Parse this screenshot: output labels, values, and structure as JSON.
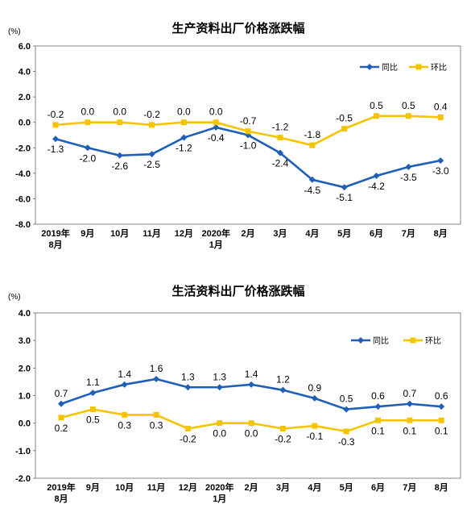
{
  "chart_data": [
    {
      "type": "line",
      "title": "生产资料出厂价格涨跌幅",
      "unit": "(%)",
      "categories": [
        "2019年\n8月",
        "9月",
        "10月",
        "11月",
        "12月",
        "2020年\n1月",
        "2月",
        "3月",
        "4月",
        "5月",
        "6月",
        "7月",
        "8月"
      ],
      "ylim": [
        -8,
        6
      ],
      "yticks": [
        "6.0",
        "4.0",
        "2.0",
        "0.0",
        "-2.0",
        "-4.0",
        "-6.0",
        "-8.0"
      ],
      "legend_position": "top-right",
      "series": [
        {
          "name": "同比",
          "color": "#1f5fb8",
          "marker": "diamond",
          "values": [
            -1.3,
            -2.0,
            -2.6,
            -2.5,
            -1.2,
            -0.4,
            -1.0,
            -2.4,
            -4.5,
            -5.1,
            -4.2,
            -3.5,
            -3.0
          ],
          "labels": [
            "-1.3",
            "-2.0",
            "-2.6",
            "-2.5",
            "-1.2",
            "-0.4",
            "-1.0",
            "-2.4",
            "-4.5",
            "-5.1",
            "-4.2",
            "-3.5",
            "-3.0"
          ]
        },
        {
          "name": "环比",
          "color": "#f5c400",
          "marker": "square",
          "values": [
            -0.2,
            0.0,
            0.0,
            -0.2,
            0.0,
            0.0,
            -0.7,
            -1.2,
            -1.8,
            -0.5,
            0.5,
            0.5,
            0.4
          ],
          "labels": [
            "-0.2",
            "0.0",
            "0.0",
            "-0.2",
            "0.0",
            "0.0",
            "-0.7",
            "-1.2",
            "-1.8",
            "-0.5",
            "0.5",
            "0.5",
            "0.4"
          ]
        }
      ]
    },
    {
      "type": "line",
      "title": "生活资料出厂价格涨跌幅",
      "unit": "(%)",
      "categories": [
        "2019年\n8月",
        "9月",
        "10月",
        "11月",
        "12月",
        "2020年\n1月",
        "2月",
        "3月",
        "4月",
        "5月",
        "6月",
        "7月",
        "8月"
      ],
      "ylim": [
        -2,
        4
      ],
      "yticks": [
        "4.0",
        "3.0",
        "2.0",
        "1.0",
        "0.0",
        "-1.0",
        "-2.0"
      ],
      "legend_position": "top-right",
      "series": [
        {
          "name": "同比",
          "color": "#1f5fb8",
          "marker": "diamond",
          "values": [
            0.7,
            1.1,
            1.4,
            1.6,
            1.3,
            1.3,
            1.4,
            1.2,
            0.9,
            0.5,
            0.6,
            0.7,
            0.6
          ],
          "labels": [
            "0.7",
            "1.1",
            "1.4",
            "1.6",
            "1.3",
            "1.3",
            "1.4",
            "1.2",
            "0.9",
            "0.5",
            "0.6",
            "0.7",
            "0.6"
          ]
        },
        {
          "name": "环比",
          "color": "#f5c400",
          "marker": "square",
          "values": [
            0.2,
            0.5,
            0.3,
            0.3,
            -0.2,
            0.0,
            0.0,
            -0.2,
            -0.1,
            -0.3,
            0.1,
            0.1,
            0.1
          ],
          "labels": [
            "0.2",
            "0.5",
            "0.3",
            "0.3",
            "-0.2",
            "0.0",
            "0.0",
            "-0.2",
            "-0.1",
            "-0.3",
            "0.1",
            "0.1",
            "0.1"
          ]
        }
      ]
    }
  ]
}
